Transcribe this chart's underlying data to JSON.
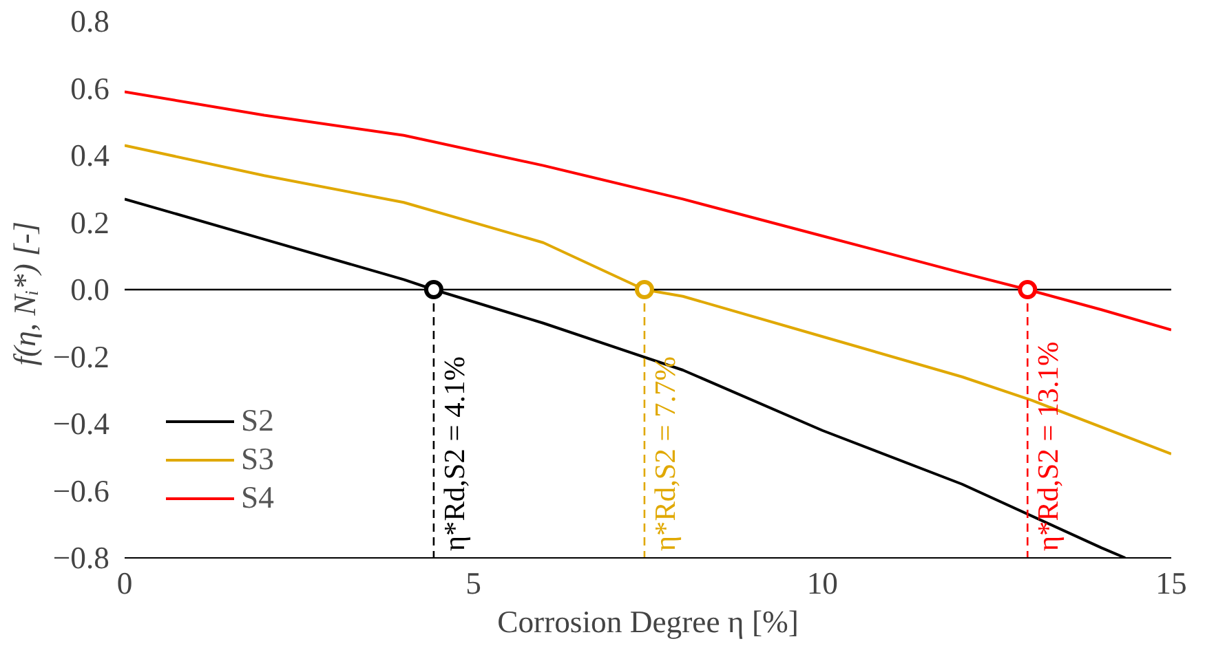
{
  "chart_data": {
    "type": "line",
    "xlabel": "Corrosion Degree η [%]",
    "ylabel": "f(η, Nᵢ*)  [-]",
    "xlim": [
      0,
      15
    ],
    "xticks": [
      0,
      5,
      10,
      15
    ],
    "ylim": [
      -0.8,
      0.8
    ],
    "yticks": [
      {
        "value": -0.8,
        "label": "−0.8"
      },
      {
        "value": -0.6,
        "label": "−0.6"
      },
      {
        "value": -0.4,
        "label": "−0.4"
      },
      {
        "value": -0.2,
        "label": "−0.2"
      },
      {
        "value": 0,
        "label": "0.0"
      },
      {
        "value": 0.2,
        "label": "0.2"
      },
      {
        "value": 0.4,
        "label": "0.4"
      },
      {
        "value": 0.6,
        "label": "0.6"
      },
      {
        "value": 0.8,
        "label": "0.8"
      }
    ],
    "grid": false,
    "legend": "bottom left",
    "marker": "none",
    "line_style": "solid",
    "series": [
      {
        "name": "S2",
        "color": "#000000",
        "x": [
          0,
          2,
          4,
          4.43,
          6,
          8,
          10,
          12,
          14,
          14.34
        ],
        "values": [
          0.27,
          0.15,
          0.03,
          0,
          -0.1,
          -0.24,
          -0.42,
          -0.58,
          -0.77,
          -0.8
        ]
      },
      {
        "name": "S3",
        "color": "#e0a800",
        "x": [
          0,
          2,
          4,
          6,
          7.45,
          8,
          10,
          12,
          13,
          15
        ],
        "values": [
          0.43,
          0.34,
          0.26,
          0.14,
          0,
          -0.02,
          -0.14,
          -0.26,
          -0.33,
          -0.49
        ]
      },
      {
        "name": "S4",
        "color": "#ff0000",
        "x": [
          0,
          2,
          4,
          6,
          8,
          10,
          12,
          12.94,
          14,
          15
        ],
        "values": [
          0.59,
          0.52,
          0.46,
          0.37,
          0.27,
          0.16,
          0.05,
          0,
          -0.06,
          -0.12
        ]
      },
      {
        "type": "scatter",
        "marker": "circle",
        "x": [
          4.43,
          7.45,
          12.94
        ],
        "values": [
          0,
          0,
          0
        ],
        "colors": [
          "#000000",
          "#e0a800",
          "#ff0000"
        ]
      }
    ],
    "ref_lines": [
      {
        "axis": "y",
        "value": 0,
        "color": "#000000",
        "line_style": "solid"
      },
      {
        "axis": "x",
        "value": 4.43,
        "color": "#000000",
        "line_style": "dashed"
      },
      {
        "axis": "x",
        "value": 7.45,
        "color": "#e0a800",
        "line_style": "dashed"
      },
      {
        "axis": "x",
        "value": 12.94,
        "color": "#ff0000",
        "line_style": "dashed"
      }
    ],
    "annotations": [
      {
        "text": "η*Rd,S2 = 4.1%",
        "x": 4.43,
        "y": -0.8
      },
      {
        "text": "η*Rd,S2 = 7.7%",
        "x": 7.45,
        "y": -0.8
      },
      {
        "text": "η*Rd,S2 = 13.1%",
        "x": 12.94,
        "y": -0.8
      }
    ]
  }
}
